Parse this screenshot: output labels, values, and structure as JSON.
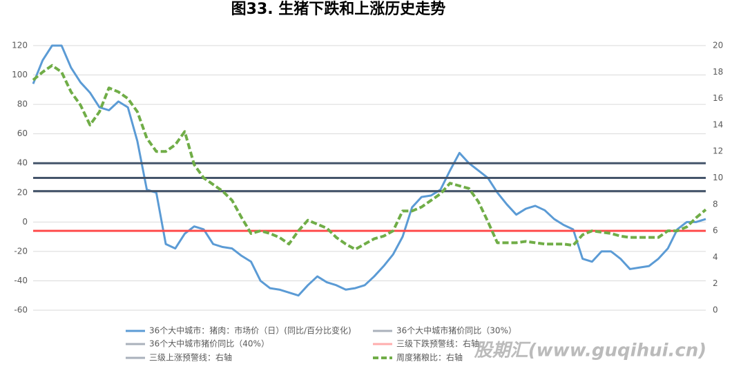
{
  "chart_data": {
    "type": "line",
    "title": "图33. 生猪下跌和上涨历史走势",
    "watermark": "股期汇(www.guqihui.cn)",
    "ylim": [
      -60,
      120
    ],
    "yticks": [
      -60,
      -40,
      -20,
      0,
      20,
      40,
      60,
      80,
      100,
      120
    ],
    "y2lim": [
      0,
      20
    ],
    "y2ticks": [
      0,
      2,
      4,
      6,
      8,
      10,
      12,
      14,
      16,
      18,
      20
    ],
    "grid": true,
    "series": [
      {
        "name": "36个大中城市：猪肉：市场价（日）(同比/百分比变化)",
        "color": "#5b9bd5",
        "values": [
          94,
          110,
          120,
          120,
          105,
          95,
          88,
          78,
          76,
          82,
          78,
          55,
          22,
          20,
          -15,
          -18,
          -8,
          -3,
          -5,
          -15,
          -17,
          -18,
          -23,
          -27,
          -40,
          -45,
          -46,
          -48,
          -50,
          -43,
          -37,
          -41,
          -43,
          -46,
          -45,
          -43,
          -37,
          -30,
          -22,
          -10,
          10,
          17,
          18,
          22,
          35,
          47,
          40,
          35,
          30,
          20,
          12,
          5,
          9,
          11,
          8,
          2,
          -2,
          -5,
          -25,
          -27,
          -20,
          -20,
          -25,
          -32,
          -31,
          -30,
          -25,
          -18,
          -5,
          0,
          0,
          2
        ]
      },
      {
        "name": "36个大中城市猪价同比（30%）",
        "color": "#44546a",
        "value": 30
      },
      {
        "name": "36个大中城市猪价同比（40%）",
        "color": "#44546a",
        "value": 40
      },
      {
        "name": "三级下跌预警线：右轴",
        "color": "#ff4b4b",
        "value": 6,
        "axis": "y2"
      },
      {
        "name": "三级上涨预警线：右轴",
        "color": "#44546a",
        "value": 9,
        "axis": "y2"
      },
      {
        "name": "周度猪粮比：右轴",
        "color": "#70ad47",
        "axis": "y2",
        "values": [
          17.4,
          18,
          18.5,
          18,
          16.5,
          15.5,
          14,
          15,
          16.8,
          16.5,
          16,
          15,
          13,
          12,
          12,
          12.5,
          13.5,
          11,
          10,
          9.5,
          9,
          8.3,
          7,
          5.8,
          6,
          5.8,
          5.5,
          5,
          6,
          6.8,
          6.5,
          6.2,
          5.5,
          5,
          4.6,
          5,
          5.4,
          5.6,
          6,
          7.5,
          7.5,
          7.8,
          8.3,
          8.8,
          9.6,
          9.4,
          9.2,
          8.2,
          6.7,
          5.1,
          5.1,
          5.1,
          5.2,
          5.1,
          5,
          5,
          5,
          4.9,
          5.7,
          6,
          5.9,
          5.8,
          5.6,
          5.5,
          5.5,
          5.5,
          5.5,
          6,
          6,
          6.3,
          7,
          7.6
        ]
      }
    ]
  }
}
